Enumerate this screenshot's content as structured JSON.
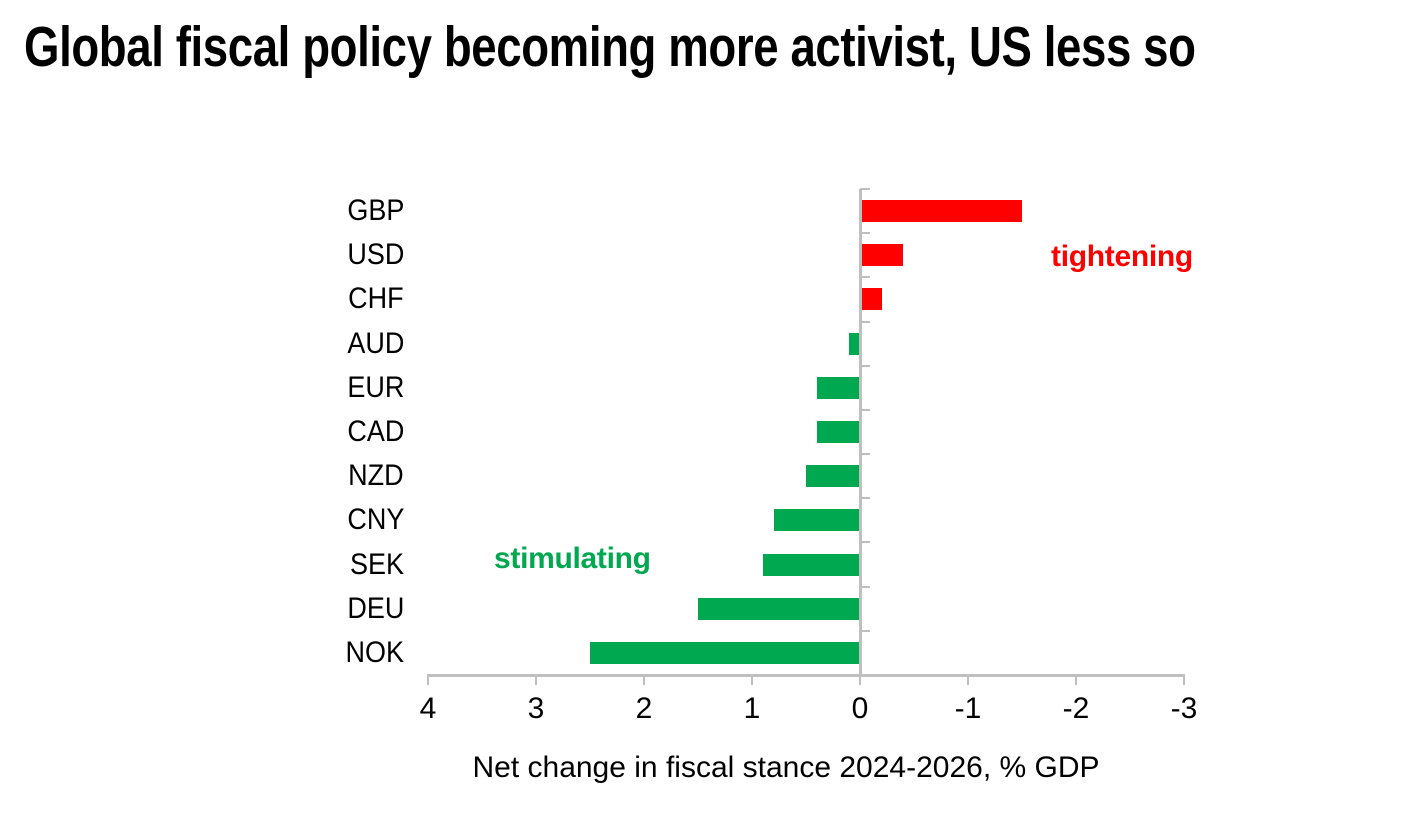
{
  "title": "Global fiscal policy becoming more activist, US less so",
  "chart_data": {
    "type": "bar",
    "orientation": "horizontal",
    "title": "Global fiscal policy becoming more activist, US less so",
    "categories": [
      "GBP",
      "USD",
      "CHF",
      "AUD",
      "EUR",
      "CAD",
      "NZD",
      "CNY",
      "SEK",
      "DEU",
      "NOK"
    ],
    "values": [
      -1.5,
      -0.4,
      -0.2,
      0.1,
      0.4,
      0.4,
      0.5,
      0.8,
      0.9,
      1.5,
      2.5
    ],
    "xlabel": "Net change in fiscal stance 2024-2026, % GDP",
    "x_ticks": [
      "4",
      "3",
      "2",
      "1",
      "0",
      "-1",
      "-2",
      "-3"
    ],
    "x_tick_values": [
      4,
      3,
      2,
      1,
      0,
      -1,
      -2,
      -3
    ],
    "xlim": [
      4,
      -3
    ],
    "x_axis_reversed": true,
    "grid": false,
    "legend": "none",
    "annotations": [
      {
        "text": "tightening",
        "meaning": "negative bars",
        "color": "#FF0000"
      },
      {
        "text": "stimulating",
        "meaning": "positive bars",
        "color": "#00A94F"
      }
    ],
    "colors": {
      "positive_bar": "#00A94F",
      "negative_bar": "#FF0000",
      "axis": "#BFBFBF",
      "text": "#000000"
    }
  }
}
